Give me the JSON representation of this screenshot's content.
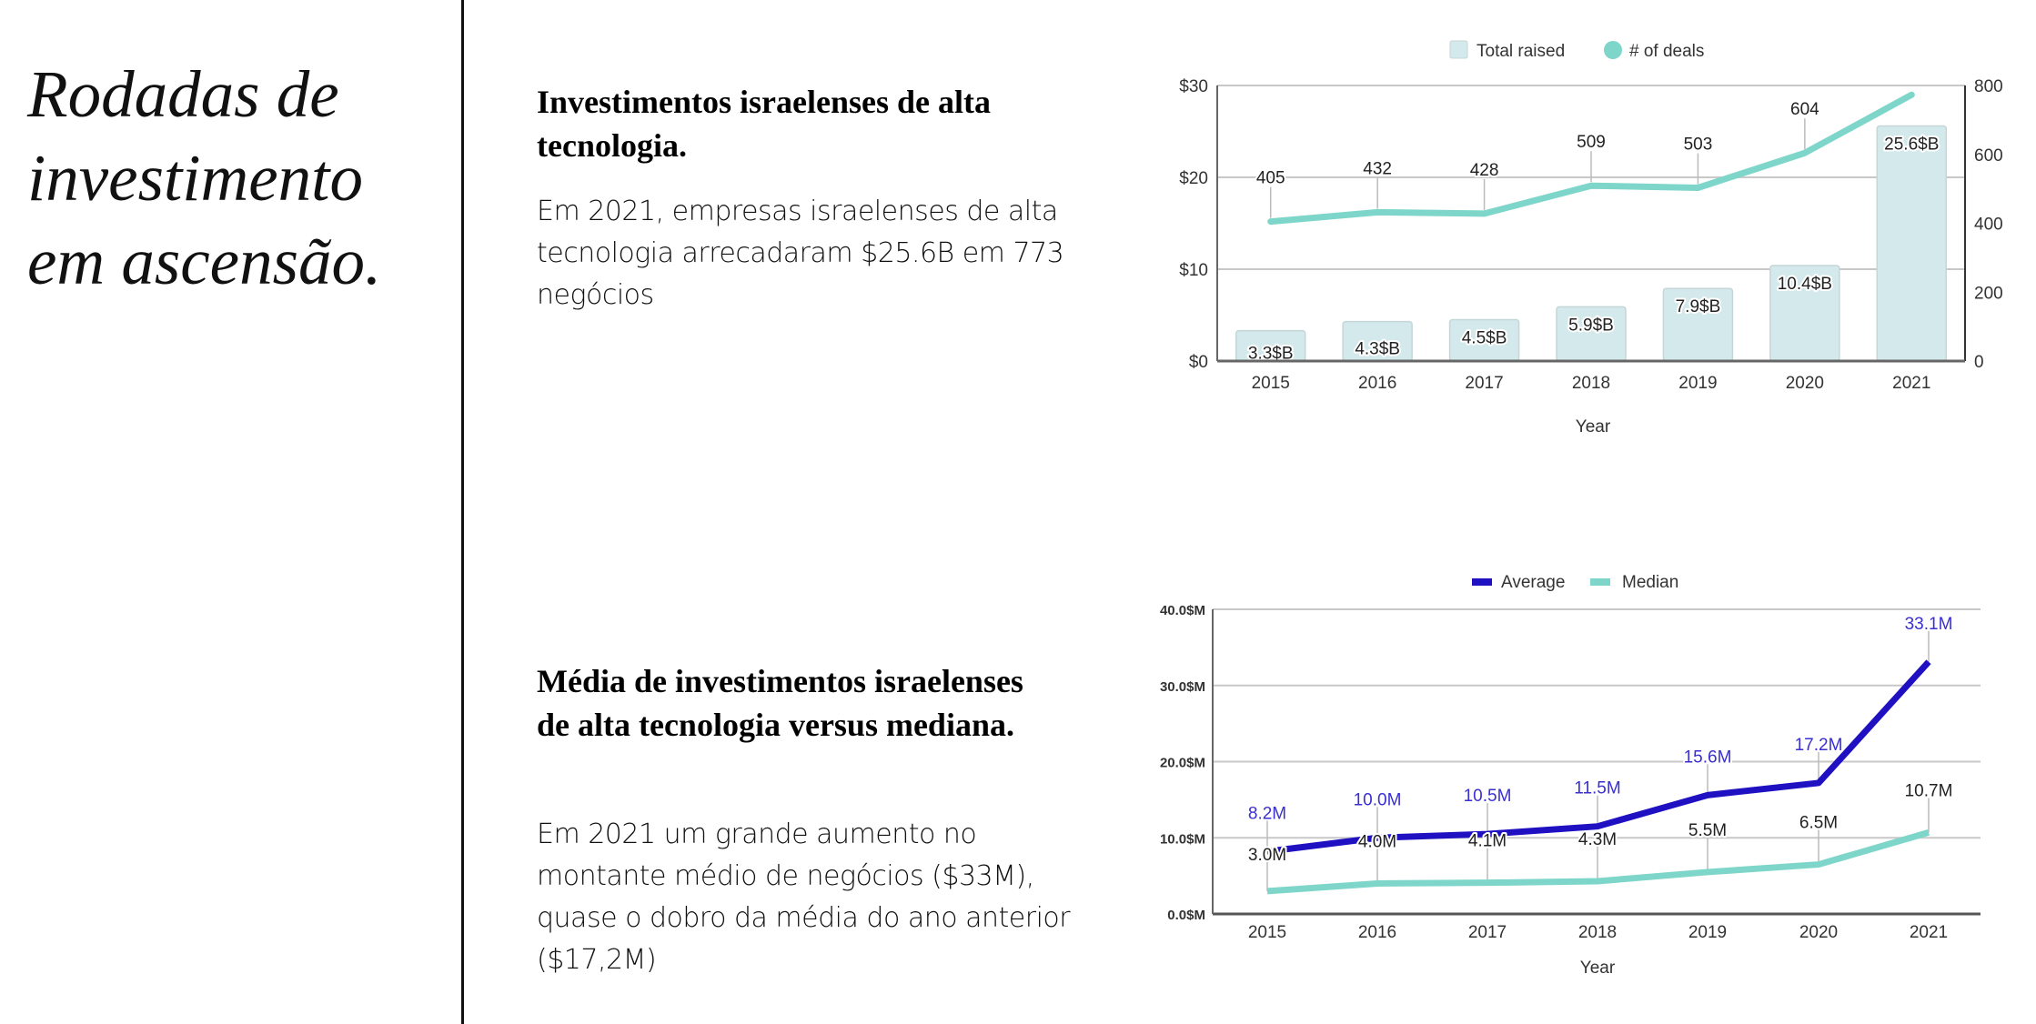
{
  "page": {
    "title": "Rodadas de investimento em ascensão."
  },
  "sections": [
    {
      "title": "Investimentos israelenses de alta tecnologia.",
      "text": "Em 2021, empresas israelenses de alta tecnologia arrecadaram $25.6B em 773 negócios"
    },
    {
      "title": "Média de investimentos israelenses de alta tecnologia versus mediana.",
      "text": "Em 2021 um grande aumento no montante médio de negócios ($33M), quase o dobro da média do ano anterior ($17,2M)"
    }
  ],
  "colors": {
    "bar_fill": "#d4e9eb",
    "bar_stroke": "#c4d6d8",
    "teal": "#7dd6c9",
    "average": "#1f10c2",
    "grid": "#c8c8c8",
    "axis": "#666666",
    "text": "#333333"
  },
  "chart_data": [
    {
      "type": "bar+line",
      "title": "",
      "xlabel": "Year",
      "categories": [
        "2015",
        "2016",
        "2017",
        "2018",
        "2019",
        "2020",
        "2021"
      ],
      "legend": [
        "Total raised",
        "# of deals"
      ],
      "legend_position": "top-center",
      "grid": true,
      "y_left": {
        "ticks": [
          "$0",
          "$10",
          "$20",
          "$30"
        ],
        "range": [
          0,
          30
        ]
      },
      "y_right": {
        "ticks": [
          "0",
          "200",
          "400",
          "600",
          "800"
        ],
        "range": [
          0,
          800
        ]
      },
      "series": [
        {
          "name": "Total raised",
          "kind": "bar",
          "axis": "left",
          "unit": "$B",
          "values": [
            3.3,
            4.3,
            4.5,
            5.9,
            7.9,
            10.4,
            25.6
          ],
          "labels": [
            "3.3$B",
            "4.3$B",
            "4.5$B",
            "5.9$B",
            "7.9$B",
            "10.4$B",
            "25.6$B"
          ]
        },
        {
          "name": "# of deals",
          "kind": "line",
          "axis": "right",
          "values": [
            405,
            432,
            428,
            509,
            503,
            604,
            773
          ],
          "labels": [
            "405",
            "432",
            "428",
            "509",
            "503",
            "604",
            ""
          ]
        }
      ]
    },
    {
      "type": "line",
      "title": "",
      "xlabel": "Year",
      "categories": [
        "2015",
        "2016",
        "2017",
        "2018",
        "2019",
        "2020",
        "2021"
      ],
      "legend": [
        "Average",
        "Median"
      ],
      "legend_position": "top-center",
      "grid": true,
      "y": {
        "ticks": [
          "0.0$M",
          "10.0$M",
          "20.0$M",
          "30.0$M",
          "40.0$M"
        ],
        "range": [
          0,
          40
        ]
      },
      "series": [
        {
          "name": "Average",
          "unit": "$M",
          "values": [
            8.2,
            10.0,
            10.5,
            11.5,
            15.6,
            17.2,
            33.1
          ],
          "labels": [
            "8.2M",
            "10.0M",
            "10.5M",
            "11.5M",
            "15.6M",
            "17.2M",
            "33.1M"
          ]
        },
        {
          "name": "Median",
          "unit": "$M",
          "values": [
            3.0,
            4.0,
            4.1,
            4.3,
            5.5,
            6.5,
            10.7
          ],
          "labels": [
            "3.0M",
            "4.0M",
            "4.1M",
            "4.3M",
            "5.5M",
            "6.5M",
            "10.7M"
          ]
        }
      ]
    }
  ]
}
